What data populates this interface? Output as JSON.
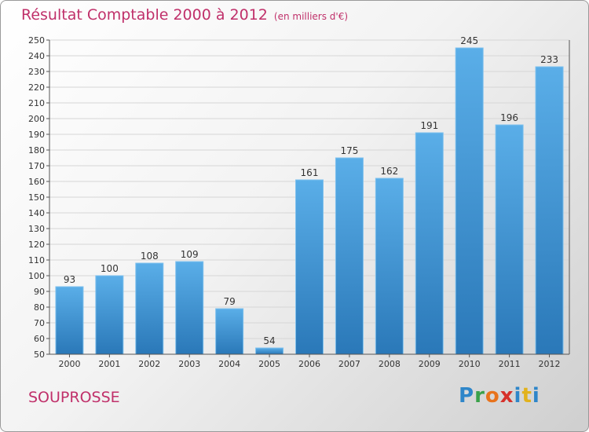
{
  "header": {
    "title": "Résultat Comptable 2000 à 2012",
    "subtitle": "(en milliers d'€)"
  },
  "footer": {
    "commune": "SOUPROSSE",
    "brand": "Proxiti"
  },
  "colors": {
    "title": "#c0306a",
    "bar_top": "#5aaee8",
    "bar_bottom": "#2a78b8",
    "grid": "#d6d6d6"
  },
  "chart_data": {
    "type": "bar",
    "title": "Résultat Comptable 2000 à 2012",
    "subtitle": "(en milliers d'€)",
    "xlabel": "",
    "ylabel": "",
    "categories": [
      "2000",
      "2001",
      "2002",
      "2003",
      "2004",
      "2005",
      "2006",
      "2007",
      "2008",
      "2009",
      "2010",
      "2011",
      "2012"
    ],
    "values": [
      93,
      100,
      108,
      109,
      79,
      54,
      161,
      175,
      162,
      191,
      245,
      196,
      233
    ],
    "ylim": [
      50,
      250
    ],
    "yticks": [
      50,
      60,
      70,
      80,
      90,
      100,
      110,
      120,
      130,
      140,
      150,
      160,
      170,
      180,
      190,
      200,
      210,
      220,
      230,
      240,
      250
    ],
    "grid": true,
    "legend": "none",
    "data_labels": true
  }
}
